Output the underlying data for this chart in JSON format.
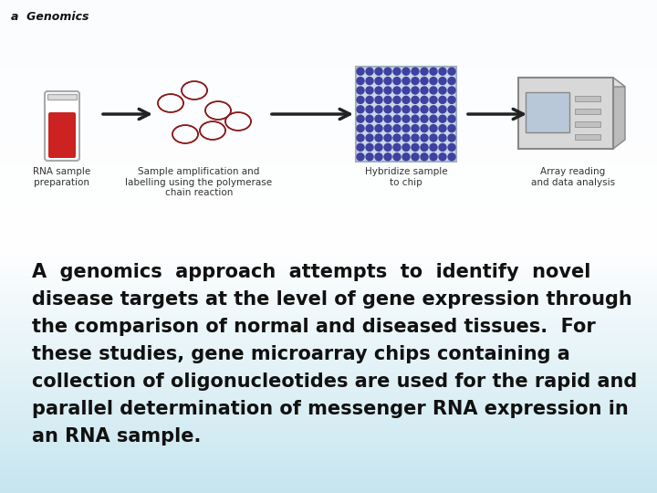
{
  "title_label": "a  Genomics",
  "paragraph_lines": [
    "A  genomics  approach  attempts  to  identify  novel",
    "disease targets at the level of gene expression through",
    "the comparison of normal and diseased tissues.  For",
    "these studies, gene microarray chips containing a",
    "collection of oligonucleotides are used for the rapid and",
    "parallel determination of messenger RNA expression in",
    "an RNA sample."
  ],
  "paragraph_fontsize": 15,
  "paragraph_color": "#111111",
  "paragraph_fontweight": "bold",
  "step_labels": [
    "RNA sample\npreparation",
    "Sample amplification and\nlabelling using the polymerase\nchain reaction",
    "Hybridize sample\nto chip",
    "Array reading\nand data analysis"
  ],
  "arrow_color": "#222222",
  "label_fontsize": 7.5,
  "bg_top_color": "#c5dff0",
  "bg_mid_color": "#daeef8",
  "bg_bottom_color": "#c8dce8"
}
